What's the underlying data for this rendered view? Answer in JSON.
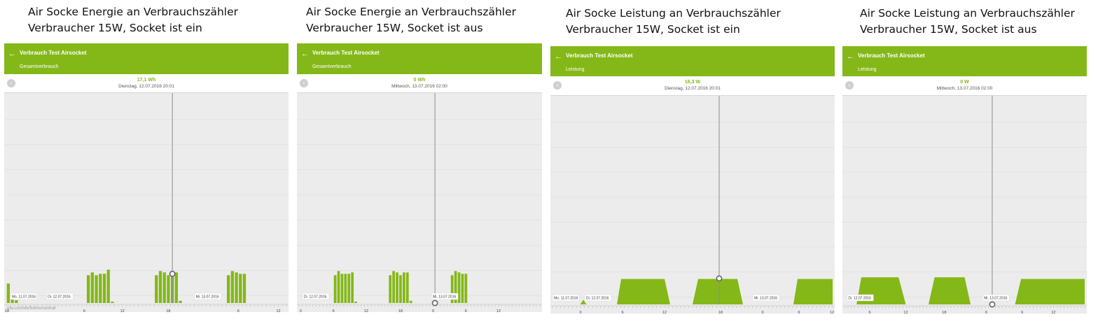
{
  "colors": {
    "accent": "#84b818",
    "plot_bg": "#ececec",
    "cursor": "#8c8c8c"
  },
  "panels": [
    {
      "caption_line1": "Air Socke Energie an Verbrauchszähler",
      "caption_line2": "Verbraucher 15W, Socket ist ein",
      "app_title": "Verbrauch Test Airsocket",
      "subtitle": "Gesamtverbrauch",
      "value": "17,1 Wh",
      "datetime": "Dienstag, 12.07.2016 20:01",
      "url_overlay": "ella.com/de/firefox/central/",
      "chart_data": {
        "type": "bar",
        "bar_values": [
          0.7,
          0.2,
          0.1,
          0,
          0,
          0,
          0,
          0,
          0,
          0,
          0,
          0,
          0,
          0,
          0,
          0,
          0,
          0,
          0,
          0,
          1,
          1.1,
          1,
          1.05,
          1.05,
          1.2,
          0.05,
          0,
          0,
          0,
          0,
          0,
          0,
          0,
          0,
          0,
          0,
          1,
          1.15,
          1.1,
          1,
          1.1,
          1.1,
          0.08,
          0,
          0,
          0,
          0,
          0,
          0,
          0,
          0,
          0,
          0,
          0,
          1,
          1.15,
          1.1,
          1.05,
          1.05
        ],
        "ymax": 7.5,
        "cursor_index": 41.5,
        "cursor_value": 1.05,
        "x_ticks": [
          {
            "i": 0,
            "label": "18"
          },
          {
            "i": 19.5,
            "label": "6"
          },
          {
            "i": 29,
            "label": "12"
          },
          {
            "i": 40.5,
            "label": "18"
          },
          {
            "i": 58,
            "label": "6"
          },
          {
            "i": 68,
            "label": "12"
          }
        ],
        "date_labels": [
          {
            "i": 1,
            "label": "Mo. 11.07.2016"
          },
          {
            "i": 10,
            "label": "Di. 12.07.2016"
          },
          {
            "i": 47,
            "label": "Mi. 13.07.2016"
          }
        ]
      }
    },
    {
      "caption_line1": "Air Socke Energie an Verbrauchszähler",
      "caption_line2": "Verbraucher 15W, Socket ist aus",
      "app_title": "Verbrauch Test Airsocket",
      "subtitle": "Gesamtverbrauch",
      "value": "0 Wh",
      "datetime": "Mittwoch, 13.07.2016 02:00",
      "chart_data": {
        "type": "bar",
        "bar_values": [
          0,
          0,
          0,
          0,
          0,
          0,
          0,
          0,
          0,
          0,
          1,
          1.15,
          1.05,
          1.05,
          1.05,
          1.1,
          0.05,
          0,
          0,
          0,
          0,
          0,
          0,
          0,
          0,
          0,
          1,
          1.15,
          1.1,
          1,
          1.1,
          1.1,
          0.08,
          0,
          0,
          0,
          0,
          0,
          0,
          0,
          0,
          0,
          0,
          0,
          1,
          1.15,
          1.1,
          1.05,
          1.05
        ],
        "ymax": 7.5,
        "cursor_index": 39.5,
        "cursor_value": 0,
        "x_ticks": [
          {
            "i": 0.5,
            "label": "0"
          },
          {
            "i": 10,
            "label": "6"
          },
          {
            "i": 19.5,
            "label": "12"
          },
          {
            "i": 29.5,
            "label": "18"
          },
          {
            "i": 39,
            "label": "0"
          },
          {
            "i": 48.5,
            "label": "6"
          },
          {
            "i": 58,
            "label": "12"
          }
        ],
        "date_labels": [
          {
            "i": 1,
            "label": "Di. 12.07.2016"
          },
          {
            "i": 38.5,
            "label": "Mi. 13.07.2016"
          }
        ]
      }
    },
    {
      "caption_line1": "Air Socke Leistung an Verbrauchszähler",
      "caption_line2": "Verbraucher 15W, Socket ist ein",
      "app_title": "Verbrauch Test Airsocket",
      "subtitle": "Leistung",
      "value": "16,3 W",
      "datetime": "Dienstag, 12.07.2016 20:01",
      "chart_data": {
        "type": "area",
        "points": [
          [
            0.05,
            0
          ],
          [
            0.095,
            0
          ],
          [
            0.1,
            0.2
          ],
          [
            0.11,
            3
          ],
          [
            0.12,
            0.2
          ],
          [
            0.125,
            0
          ],
          [
            0.15,
            0
          ],
          [
            0.23,
            0
          ],
          [
            0.245,
            16
          ],
          [
            0.4,
            16
          ],
          [
            0.42,
            0
          ],
          [
            0.5,
            0
          ],
          [
            0.52,
            16
          ],
          [
            0.66,
            16
          ],
          [
            0.68,
            0
          ],
          [
            0.86,
            0
          ],
          [
            0.875,
            16
          ],
          [
            1,
            16
          ]
        ],
        "ymax": 130,
        "cursor_pos": 0.595,
        "cursor_value": 16.3,
        "x_ticks": [
          {
            "pos": 0.1,
            "label": "0"
          },
          {
            "pos": 0.25,
            "label": "6"
          },
          {
            "pos": 0.4,
            "label": "12"
          },
          {
            "pos": 0.6,
            "label": "18"
          },
          {
            "pos": 0.75,
            "label": "0"
          },
          {
            "pos": 0.88,
            "label": "6"
          },
          {
            "pos": 1,
            "label": "12"
          }
        ],
        "date_labels": [
          {
            "pos": 0.0,
            "label": "Mo. 11.07.2016"
          },
          {
            "pos": 0.115,
            "label": "Di. 12.07.2016"
          },
          {
            "pos": 0.715,
            "label": "Mi. 13.07.2016"
          }
        ]
      }
    },
    {
      "caption_line1": "Air Socke Leistung an Verbrauchszähler",
      "caption_line2": "Verbraucher 15W, Socket ist aus",
      "app_title": "Verbrauch Test Airsocket",
      "subtitle": "Leistung",
      "value": "0 W",
      "datetime": "Mittwoch, 13.07.2016 02:00",
      "chart_data": {
        "type": "area",
        "points": [
          [
            0,
            0
          ],
          [
            0.05,
            0
          ],
          [
            0.07,
            17
          ],
          [
            0.225,
            17
          ],
          [
            0.255,
            0
          ],
          [
            0.35,
            0
          ],
          [
            0.375,
            17
          ],
          [
            0.5,
            17
          ],
          [
            0.525,
            0
          ],
          [
            0.71,
            0
          ],
          [
            0.735,
            16
          ],
          [
            0.86,
            16
          ],
          [
            1,
            16
          ]
        ],
        "ymax": 130,
        "cursor_pos": 0.615,
        "cursor_value": 0,
        "x_ticks": [
          {
            "pos": 0.105,
            "label": "6"
          },
          {
            "pos": 0.255,
            "label": "12"
          },
          {
            "pos": 0.415,
            "label": "18"
          },
          {
            "pos": 0.59,
            "label": "0"
          },
          {
            "pos": 0.74,
            "label": "6"
          },
          {
            "pos": 0.87,
            "label": "12"
          }
        ],
        "date_labels": [
          {
            "pos": 0.01,
            "label": "Di. 12.07.2016"
          },
          {
            "pos": 0.575,
            "label": "Mi. 13.07.2016"
          }
        ]
      }
    }
  ]
}
